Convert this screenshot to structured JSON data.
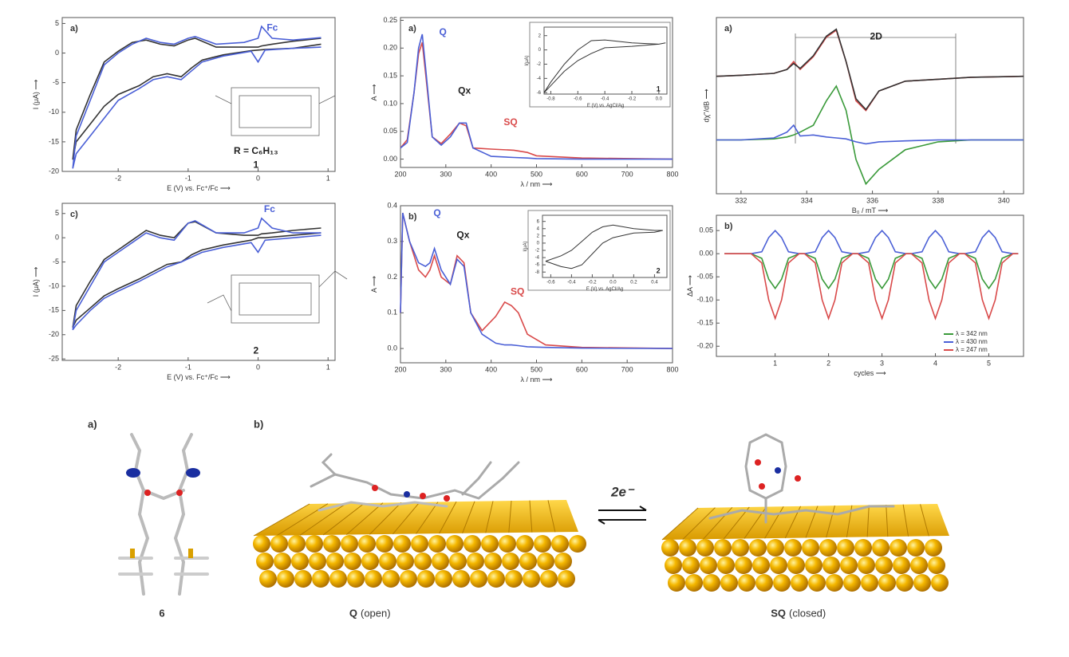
{
  "chart_data": [
    {
      "type": "line",
      "panel": "a)",
      "xlabel": "E (V) vs. Fc⁺/Fc ⟶",
      "ylabel": "I (μA) ⟶",
      "annotations": [
        {
          "text": "Fc",
          "color": "#4a5fd6"
        },
        {
          "text": "1"
        },
        {
          "text": "R = C₆H₁₃"
        }
      ],
      "xlim": [
        -2.8,
        1.1
      ],
      "ylim": [
        -20,
        6
      ],
      "xticks": [
        -2,
        -1,
        0,
        1
      ],
      "yticks": [
        5,
        0,
        -5,
        -10,
        -15,
        -20
      ],
      "x": [
        0.9,
        0.5,
        0.1,
        0.0,
        -0.1,
        -0.5,
        -0.8,
        -0.95,
        -1.1,
        -1.3,
        -1.5,
        -1.7,
        -2.0,
        -2.2,
        -2.4,
        -2.6,
        -2.65,
        -2.6,
        -2.4,
        -2.2,
        -2.0,
        -1.8,
        -1.6,
        -1.4,
        -1.2,
        -1.0,
        -0.9,
        -0.6,
        -0.2,
        0.0,
        0.05,
        0.2,
        0.5,
        0.9
      ],
      "series": [
        {
          "color": "#333333",
          "values": [
            1.5,
            0.8,
            0.6,
            0.5,
            0.4,
            -0.3,
            -1.2,
            -2.5,
            -4,
            -3.5,
            -4,
            -5.5,
            -7,
            -9,
            -12,
            -15,
            -18,
            -13,
            -7,
            -1.5,
            0.3,
            1.8,
            2.2,
            1.5,
            1.2,
            2.2,
            2.5,
            1,
            1,
            1,
            1.2,
            1.5,
            2,
            2.5
          ]
        },
        {
          "color": "#4a5fd6",
          "values": [
            1,
            0.8,
            0.5,
            -1.5,
            0.3,
            -0.5,
            -1.5,
            -3,
            -4.5,
            -4,
            -4.5,
            -6,
            -8,
            -11,
            -14,
            -17,
            -19.5,
            -14,
            -8,
            -2,
            0,
            1.5,
            2.5,
            1.8,
            1.5,
            2.5,
            2.8,
            1.5,
            1.8,
            2.5,
            4.5,
            2.5,
            2.2,
            2.6
          ]
        }
      ]
    },
    {
      "type": "line",
      "panel": "a)",
      "xlabel": "λ / nm ⟶",
      "ylabel": "A ⟶",
      "annotations": [
        {
          "text": "Q",
          "color": "#4a5fd6"
        },
        {
          "text": "Qx"
        },
        {
          "text": "SQ",
          "color": "#d94a4a"
        }
      ],
      "xlim": [
        200,
        800
      ],
      "ylim": [
        -0.015,
        0.255
      ],
      "xticks": [
        200,
        300,
        400,
        500,
        600,
        700,
        800
      ],
      "yticks": [
        {
          "value": 0,
          "label": "0.00"
        },
        0.05,
        {
          "value": 0.1,
          "label": "0.10"
        },
        0.15,
        {
          "value": 0.2,
          "label": "0.20"
        },
        0.25
      ],
      "x": [
        200,
        215,
        230,
        240,
        248,
        256,
        270,
        290,
        310,
        330,
        345,
        360,
        400,
        450,
        480,
        500,
        600,
        800
      ],
      "series": [
        {
          "color": "#d94a4a",
          "values": [
            0.02,
            0.035,
            0.12,
            0.19,
            0.21,
            0.15,
            0.04,
            0.028,
            0.045,
            0.065,
            0.06,
            0.02,
            0.018,
            0.016,
            0.012,
            0.006,
            0.002,
            0
          ]
        },
        {
          "color": "#4a5fd6",
          "values": [
            0.02,
            0.03,
            0.12,
            0.2,
            0.225,
            0.16,
            0.04,
            0.025,
            0.04,
            0.065,
            0.065,
            0.02,
            0.005,
            0.003,
            0.002,
            0.001,
            0,
            0
          ]
        }
      ]
    },
    {
      "type": "line",
      "xlabel": "E (V) vs. AgCl/Ag",
      "ylabel": "I(μA)",
      "annotations": [
        {
          "text": "1"
        }
      ],
      "xlim": [
        -0.85,
        0.06
      ],
      "ylim": [
        -6.2,
        3.2
      ],
      "xticks": [
        -0.8,
        -0.6,
        -0.4,
        -0.2,
        {
          "value": 0,
          "label": "0.0"
        }
      ],
      "yticks": [
        2,
        0,
        -2,
        -4,
        -6
      ],
      "x": [
        -0.85,
        -0.8,
        -0.7,
        -0.6,
        -0.5,
        -0.4,
        -0.2,
        0,
        0.05,
        0,
        -0.2,
        -0.4,
        -0.5,
        -0.6,
        -0.7,
        -0.8,
        -0.85
      ],
      "series": [
        {
          "color": "#333333",
          "values": [
            -6,
            -5,
            -3,
            -1.5,
            -0.5,
            0.3,
            0.5,
            0.8,
            1,
            0.8,
            1,
            1.4,
            1.3,
            0,
            -2,
            -4.5,
            -6
          ]
        }
      ]
    },
    {
      "type": "line",
      "panel": "a)",
      "xlabel": "B₀ / mT ⟶",
      "ylabel": "dχ''/dB ⟶",
      "annotations": [
        {
          "text": "2D"
        }
      ],
      "xlim": [
        331.25,
        340.6
      ],
      "ylim": [
        -0.75,
        1.05
      ],
      "xticks": [
        332,
        334,
        336,
        338,
        340
      ],
      "x": [
        331.25,
        332,
        333,
        333.4,
        333.6,
        333.8,
        334.2,
        334.6,
        334.9,
        335.2,
        335.5,
        335.8,
        336.2,
        337,
        338,
        339,
        340.6
      ],
      "series": [
        {
          "color": "#d94a4a",
          "values": [
            0.45,
            0.46,
            0.48,
            0.52,
            0.6,
            0.52,
            0.65,
            0.85,
            0.92,
            0.6,
            0.2,
            0.1,
            0.3,
            0.4,
            0.42,
            0.44,
            0.45
          ]
        },
        {
          "color": "#333333",
          "values": [
            0.45,
            0.46,
            0.48,
            0.52,
            0.58,
            0.53,
            0.66,
            0.86,
            0.93,
            0.6,
            0.22,
            0.11,
            0.3,
            0.4,
            0.42,
            0.44,
            0.45
          ]
        },
        {
          "color": "#3a9a3a",
          "values": [
            -0.2,
            -0.2,
            -0.19,
            -0.17,
            -0.15,
            -0.12,
            -0.05,
            0.2,
            0.35,
            0.1,
            -0.4,
            -0.65,
            -0.5,
            -0.3,
            -0.22,
            -0.2,
            -0.2
          ]
        },
        {
          "color": "#4a5fd6",
          "values": [
            -0.2,
            -0.2,
            -0.18,
            -0.12,
            -0.05,
            -0.16,
            -0.15,
            -0.17,
            -0.18,
            -0.19,
            -0.22,
            -0.24,
            -0.22,
            -0.21,
            -0.2,
            -0.2,
            -0.2
          ]
        }
      ]
    },
    {
      "type": "line",
      "panel": "c)",
      "xlabel": "E (V) vs. Fc⁺/Fc ⟶",
      "ylabel": "I (μA) ⟶",
      "annotations": [
        {
          "text": "Fc",
          "color": "#4a5fd6"
        },
        {
          "text": "2"
        }
      ],
      "xlim": [
        -2.8,
        1.1
      ],
      "ylim": [
        -25.3,
        7.1
      ],
      "xticks": [
        -2,
        -1,
        0,
        1
      ],
      "yticks": [
        5,
        0,
        -5,
        -10,
        -15,
        -20,
        -25
      ],
      "x": [
        0.9,
        0.5,
        0.1,
        0.0,
        -0.1,
        -0.5,
        -0.8,
        -0.95,
        -1.1,
        -1.3,
        -1.5,
        -1.7,
        -2.0,
        -2.2,
        -2.4,
        -2.6,
        -2.65,
        -2.6,
        -2.4,
        -2.2,
        -2.0,
        -1.8,
        -1.6,
        -1.4,
        -1.2,
        -1.0,
        -0.9,
        -0.6,
        -0.2,
        0.0,
        0.05,
        0.2,
        0.5,
        0.9
      ],
      "series": [
        {
          "color": "#333333",
          "values": [
            1,
            0.5,
            0,
            0,
            -0.5,
            -1.5,
            -2.5,
            -3.5,
            -5,
            -5.5,
            -7,
            -8.5,
            -10.5,
            -12,
            -14.5,
            -17,
            -18.5,
            -14,
            -9,
            -4.5,
            -2.5,
            -0.5,
            1.5,
            0.5,
            0,
            3,
            3.3,
            1,
            0.5,
            0.5,
            0.8,
            1,
            1.5,
            2
          ]
        },
        {
          "color": "#4a5fd6",
          "values": [
            0.5,
            0,
            -0.5,
            -3,
            -1,
            -2,
            -3,
            -4,
            -5,
            -6,
            -7.5,
            -9,
            -11,
            -12.5,
            -15,
            -18,
            -19,
            -15,
            -10,
            -5,
            -3,
            -1,
            1,
            0,
            -0.5,
            3,
            3.5,
            1,
            1,
            2,
            4,
            2,
            1,
            1
          ]
        }
      ]
    },
    {
      "type": "line",
      "panel": "b)",
      "xlabel": "λ / nm ⟶",
      "ylabel": "A ⟶",
      "annotations": [
        {
          "text": "Q",
          "color": "#4a5fd6"
        },
        {
          "text": "Qx"
        },
        {
          "text": "SQ",
          "color": "#d94a4a"
        }
      ],
      "xlim": [
        200,
        800
      ],
      "ylim": [
        -0.04,
        0.4
      ],
      "xticks": [
        200,
        300,
        400,
        500,
        600,
        700,
        800
      ],
      "yticks": [
        {
          "value": 0,
          "label": "0.0"
        },
        0.1,
        0.2,
        0.3,
        0.4
      ],
      "x": [
        200,
        205,
        220,
        240,
        255,
        265,
        275,
        290,
        310,
        325,
        340,
        355,
        380,
        410,
        430,
        445,
        460,
        480,
        520,
        600,
        800
      ],
      "series": [
        {
          "color": "#d94a4a",
          "values": [
            0.1,
            0.38,
            0.3,
            0.22,
            0.2,
            0.22,
            0.26,
            0.2,
            0.18,
            0.26,
            0.24,
            0.1,
            0.05,
            0.09,
            0.13,
            0.12,
            0.1,
            0.04,
            0.01,
            0.003,
            0
          ]
        },
        {
          "color": "#4a5fd6",
          "values": [
            0.1,
            0.38,
            0.3,
            0.24,
            0.23,
            0.24,
            0.28,
            0.22,
            0.18,
            0.25,
            0.23,
            0.1,
            0.04,
            0.015,
            0.01,
            0.01,
            0.008,
            0.005,
            0.003,
            0.001,
            0
          ]
        }
      ]
    },
    {
      "type": "line",
      "xlabel": "E (V) vs. AgCl/Ag",
      "ylabel": "I(μA)",
      "annotations": [
        {
          "text": "2"
        }
      ],
      "xlim": [
        -0.68,
        0.52
      ],
      "ylim": [
        -9.5,
        7.7
      ],
      "xticks": [
        -0.6,
        -0.4,
        -0.2,
        {
          "value": 0,
          "label": "0.0"
        },
        0.2,
        0.4
      ],
      "yticks": [
        6,
        4,
        2,
        0,
        -2,
        -4,
        -6,
        -8
      ],
      "x": [
        -0.65,
        -0.5,
        -0.4,
        -0.3,
        -0.2,
        -0.1,
        0,
        0.2,
        0.4,
        0.48,
        0.4,
        0.2,
        0,
        -0.1,
        -0.2,
        -0.3,
        -0.4,
        -0.5,
        -0.65
      ],
      "series": [
        {
          "color": "#333333",
          "values": [
            -5,
            -6.5,
            -7,
            -6,
            -3,
            0,
            1.5,
            2.8,
            3,
            3.5,
            3.5,
            4,
            5,
            4.5,
            3,
            0.5,
            -2,
            -3.5,
            -5
          ]
        }
      ]
    },
    {
      "type": "line",
      "panel": "b)",
      "xlabel": "cycles ⟶",
      "ylabel": "ΔA ⟶",
      "legend": "lower right",
      "xlim": [
        -0.1,
        5.65
      ],
      "ylim": [
        -0.222,
        0.083
      ],
      "xticks": [
        1,
        2,
        3,
        4,
        5
      ],
      "yticks": [
        0.05,
        {
          "value": 0,
          "label": "0.00"
        },
        -0.05,
        {
          "value": -0.1,
          "label": "-0.10"
        },
        -0.15,
        {
          "value": -0.2,
          "label": "-0.20"
        }
      ],
      "x": [
        0.05,
        0.55,
        0.75,
        0.88,
        1,
        1.12,
        1.25,
        1.45,
        1.55,
        1.75,
        1.88,
        2,
        2.12,
        2.25,
        2.45,
        2.55,
        2.75,
        2.88,
        3,
        3.12,
        3.25,
        3.45,
        3.55,
        3.75,
        3.88,
        4,
        4.12,
        4.25,
        4.45,
        4.55,
        4.75,
        4.88,
        5,
        5.12,
        5.25,
        5.45,
        5.55
      ],
      "series": [
        {
          "name": "λ = 342 nm",
          "color": "#3a9a3a",
          "values": [
            0,
            0,
            -0.01,
            -0.055,
            -0.075,
            -0.055,
            -0.01,
            0,
            0,
            -0.01,
            -0.055,
            -0.075,
            -0.055,
            -0.01,
            0,
            0,
            -0.01,
            -0.055,
            -0.075,
            -0.055,
            -0.01,
            0,
            0,
            -0.01,
            -0.055,
            -0.075,
            -0.055,
            -0.01,
            0,
            0,
            -0.01,
            -0.055,
            -0.075,
            -0.055,
            -0.01,
            0,
            0
          ]
        },
        {
          "name": "λ = 430 nm",
          "color": "#4a5fd6",
          "values": [
            0,
            0,
            0.004,
            0.035,
            0.05,
            0.035,
            0.004,
            0,
            0,
            0.004,
            0.035,
            0.05,
            0.035,
            0.004,
            0,
            0,
            0.004,
            0.035,
            0.05,
            0.035,
            0.004,
            0,
            0,
            0.004,
            0.035,
            0.05,
            0.035,
            0.004,
            0,
            0,
            0.004,
            0.035,
            0.05,
            0.035,
            0.004,
            0,
            0
          ]
        },
        {
          "name": "λ = 247 nm",
          "color": "#d94a4a",
          "values": [
            0,
            0,
            -0.02,
            -0.1,
            -0.14,
            -0.1,
            -0.02,
            0,
            0,
            -0.02,
            -0.1,
            -0.14,
            -0.1,
            -0.02,
            0,
            0,
            -0.02,
            -0.1,
            -0.14,
            -0.1,
            -0.02,
            0,
            0,
            -0.02,
            -0.1,
            -0.14,
            -0.1,
            -0.02,
            0,
            0,
            -0.02,
            -0.1,
            -0.14,
            -0.1,
            -0.02,
            0,
            0
          ]
        }
      ]
    }
  ],
  "illustration": {
    "panel_a": "a)",
    "panel_b": "b)",
    "compound": "6",
    "open_label": "Q",
    "open_state": "(open)",
    "closed_label": "SQ",
    "closed_state": "(closed)",
    "reaction": "2e⁻"
  }
}
